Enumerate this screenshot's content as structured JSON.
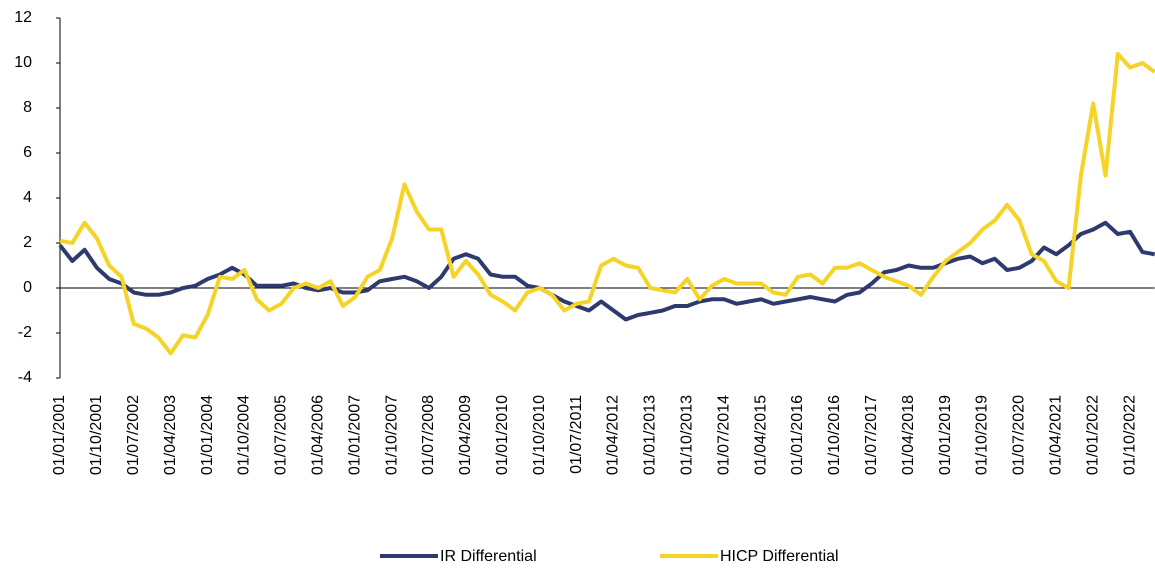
{
  "chart_data": {
    "type": "line",
    "categories": [
      "01/01/2001",
      null,
      null,
      "01/10/2001",
      null,
      null,
      "01/07/2002",
      null,
      null,
      "01/04/2003",
      null,
      null,
      "01/01/2004",
      null,
      null,
      "01/10/2004",
      null,
      null,
      "01/07/2005",
      null,
      null,
      "01/04/2006",
      null,
      null,
      "01/01/2007",
      null,
      null,
      "01/10/2007",
      null,
      null,
      "01/07/2008",
      null,
      null,
      "01/04/2009",
      null,
      null,
      "01/01/2010",
      null,
      null,
      "01/10/2010",
      null,
      null,
      "01/07/2011",
      null,
      null,
      "01/04/2012",
      null,
      null,
      "01/01/2013",
      null,
      null,
      "01/10/2013",
      null,
      null,
      "01/07/2014",
      null,
      null,
      "01/04/2015",
      null,
      null,
      "01/01/2016",
      null,
      null,
      "01/10/2016",
      null,
      null,
      "01/07/2017",
      null,
      null,
      "01/04/2018",
      null,
      null,
      "01/01/2019",
      null,
      null,
      "01/10/2019",
      null,
      null,
      "01/07/2020",
      null,
      null,
      "01/04/2021",
      null,
      null,
      "01/01/2022",
      null,
      null,
      "01/10/2022",
      null,
      null
    ],
    "series": [
      {
        "name": "IR Differential",
        "color": "#2e3a6e",
        "values": [
          1.9,
          1.2,
          1.7,
          0.9,
          0.4,
          0.2,
          -0.2,
          -0.3,
          -0.3,
          -0.2,
          0.0,
          0.1,
          0.4,
          0.6,
          0.9,
          0.6,
          0.1,
          0.1,
          0.1,
          0.2,
          0.0,
          -0.1,
          0.0,
          -0.2,
          -0.2,
          -0.1,
          0.3,
          0.4,
          0.5,
          0.3,
          0.0,
          0.5,
          1.3,
          1.5,
          1.3,
          0.6,
          0.5,
          0.5,
          0.1,
          0.0,
          -0.3,
          -0.6,
          -0.8,
          -1.0,
          -0.6,
          -1.0,
          -1.4,
          -1.2,
          -1.1,
          -1.0,
          -0.8,
          -0.8,
          -0.6,
          -0.5,
          -0.5,
          -0.7,
          -0.6,
          -0.5,
          -0.7,
          -0.6,
          -0.5,
          -0.4,
          -0.5,
          -0.6,
          -0.3,
          -0.2,
          0.2,
          0.7,
          0.8,
          1.0,
          0.9,
          0.9,
          1.1,
          1.3,
          1.4,
          1.1,
          1.3,
          0.8,
          0.9,
          1.2,
          1.8,
          1.5,
          1.9,
          2.4,
          2.6,
          2.9,
          2.4,
          2.5,
          1.6,
          1.5
        ]
      },
      {
        "name": "HICP Differential",
        "color": "#f5d327",
        "values": [
          2.1,
          2.0,
          2.9,
          2.2,
          1.0,
          0.5,
          -1.6,
          -1.8,
          -2.2,
          -2.9,
          -2.1,
          -2.2,
          -1.2,
          0.5,
          0.4,
          0.8,
          -0.5,
          -1.0,
          -0.7,
          0.0,
          0.2,
          0.0,
          0.3,
          -0.8,
          -0.4,
          0.5,
          0.8,
          2.2,
          4.6,
          3.4,
          2.6,
          2.6,
          0.5,
          1.2,
          0.6,
          -0.3,
          -0.6,
          -1.0,
          -0.2,
          0.0,
          -0.3,
          -1.0,
          -0.7,
          -0.6,
          1.0,
          1.3,
          1.0,
          0.9,
          0.0,
          -0.1,
          -0.2,
          0.4,
          -0.5,
          0.1,
          0.4,
          0.2,
          0.2,
          0.2,
          -0.2,
          -0.3,
          0.5,
          0.6,
          0.2,
          0.9,
          0.9,
          1.1,
          0.8,
          0.5,
          0.3,
          0.1,
          -0.3,
          0.5,
          1.2,
          1.6,
          2.0,
          2.6,
          3.0,
          3.7,
          3.0,
          1.5,
          1.2,
          0.3,
          0.0,
          5.0,
          8.2,
          5.0,
          10.4,
          9.8,
          10.0,
          9.6
        ]
      }
    ],
    "ylim": [
      -4,
      12
    ],
    "yticks": [
      -4,
      -2,
      0,
      2,
      4,
      6,
      8,
      10,
      12
    ],
    "legend": "bottom"
  }
}
